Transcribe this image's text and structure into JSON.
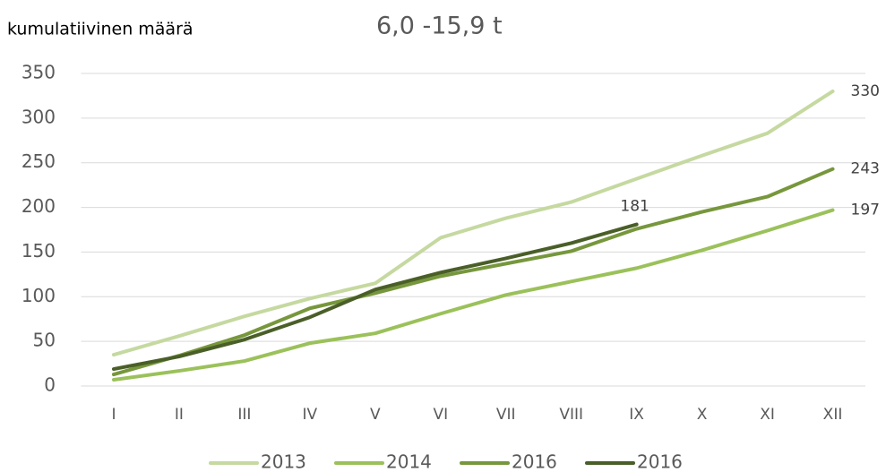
{
  "chart_data": {
    "type": "line",
    "title": "kumulatiivinen määrä",
    "subtitle": "6,0 -15,9 t",
    "categories": [
      "I",
      "II",
      "III",
      "IV",
      "V",
      "VI",
      "VII",
      "VIII",
      "IX",
      "X",
      "XI",
      "XII"
    ],
    "series": [
      {
        "name": "2013",
        "color": "#c5d9a0",
        "label_last": true,
        "values": [
          35,
          56,
          78,
          98,
          115,
          166,
          188,
          206,
          232,
          258,
          283,
          330
        ]
      },
      {
        "name": "2014",
        "color": "#9bc15a",
        "label_last": true,
        "values": [
          7,
          17,
          28,
          48,
          59,
          81,
          102,
          117,
          132,
          152,
          174,
          197
        ]
      },
      {
        "name": "2016",
        "color": "#77973c",
        "label_last": true,
        "values": [
          13,
          34,
          57,
          87,
          104,
          123,
          137,
          151,
          176,
          195,
          212,
          243
        ]
      },
      {
        "name": "2016",
        "color": "#4a5f28",
        "label_last": true,
        "values": [
          19,
          33,
          52,
          77,
          108,
          127,
          143,
          160,
          181,
          null,
          null,
          null
        ]
      }
    ],
    "ylim": [
      0,
      350
    ],
    "yticks": [
      0,
      50,
      100,
      150,
      200,
      250,
      300,
      350
    ],
    "grid": true,
    "legend": "bottom"
  }
}
